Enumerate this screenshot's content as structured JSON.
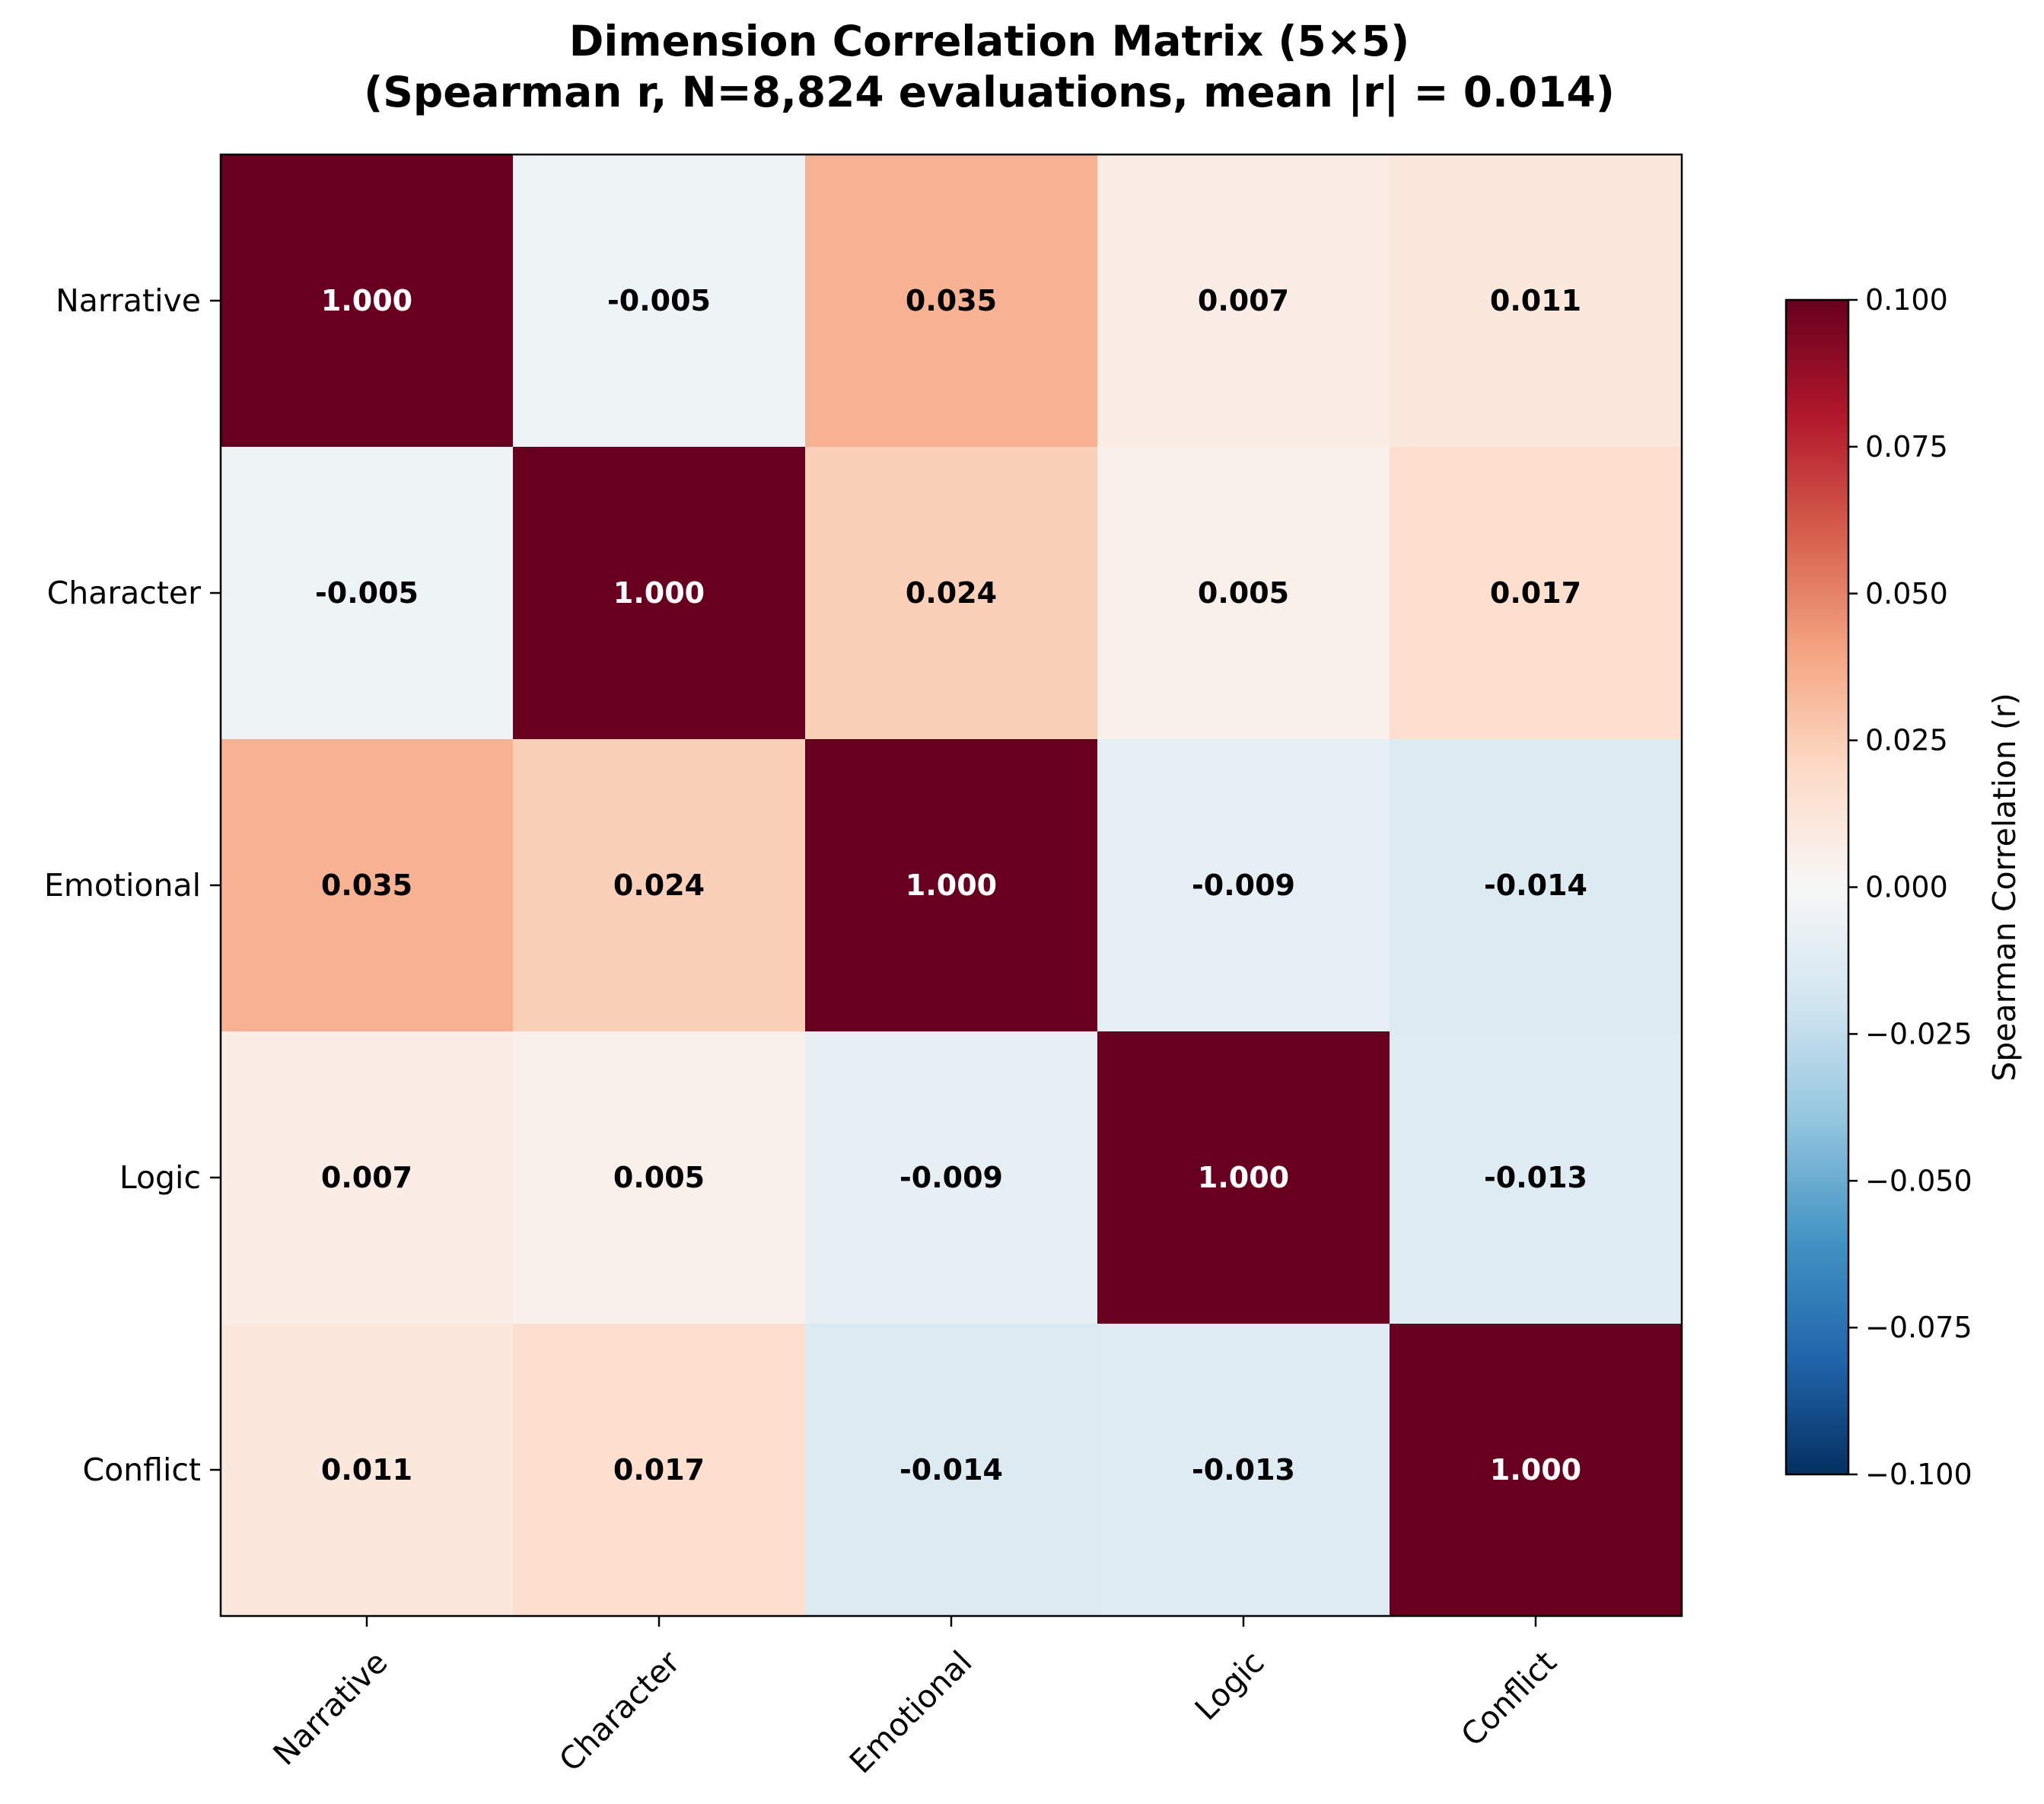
{
  "chart_data": {
    "type": "heatmap",
    "title": "Dimension Correlation Matrix (5×5)",
    "subtitle": "(Spearman r, N=8,824 evaluations, mean |r| = 0.014)",
    "row_labels": [
      "Narrative",
      "Character",
      "Emotional",
      "Logic",
      "Conflict"
    ],
    "col_labels": [
      "Narrative",
      "Character",
      "Emotional",
      "Logic",
      "Conflict"
    ],
    "values": [
      [
        1.0,
        -0.005,
        0.035,
        0.007,
        0.011
      ],
      [
        -0.005,
        1.0,
        0.024,
        0.005,
        0.017
      ],
      [
        0.035,
        0.024,
        1.0,
        -0.009,
        -0.014
      ],
      [
        0.007,
        0.005,
        -0.009,
        1.0,
        -0.013
      ],
      [
        0.011,
        0.017,
        -0.014,
        -0.013,
        1.0
      ]
    ],
    "cell_labels": [
      [
        "1.000",
        "-0.005",
        "0.035",
        "0.007",
        "0.011"
      ],
      [
        "-0.005",
        "1.000",
        "0.024",
        "0.005",
        "0.017"
      ],
      [
        "0.035",
        "0.024",
        "1.000",
        "-0.009",
        "-0.014"
      ],
      [
        "0.007",
        "0.005",
        "-0.009",
        "1.000",
        "-0.013"
      ],
      [
        "0.011",
        "0.017",
        "-0.014",
        "-0.013",
        "1.000"
      ]
    ],
    "colormap": "RdBu_r",
    "vmin": -0.1,
    "vmax": 0.1,
    "colorbar": {
      "label": "Spearman Correlation (r)",
      "ticks": [
        0.1,
        0.075,
        0.05,
        0.025,
        0.0,
        -0.025,
        -0.05,
        -0.075,
        -0.1
      ],
      "tick_labels": [
        "0.100",
        "0.075",
        "0.050",
        "0.025",
        "0.000",
        "−0.025",
        "−0.050",
        "−0.075",
        "−0.100"
      ]
    }
  }
}
